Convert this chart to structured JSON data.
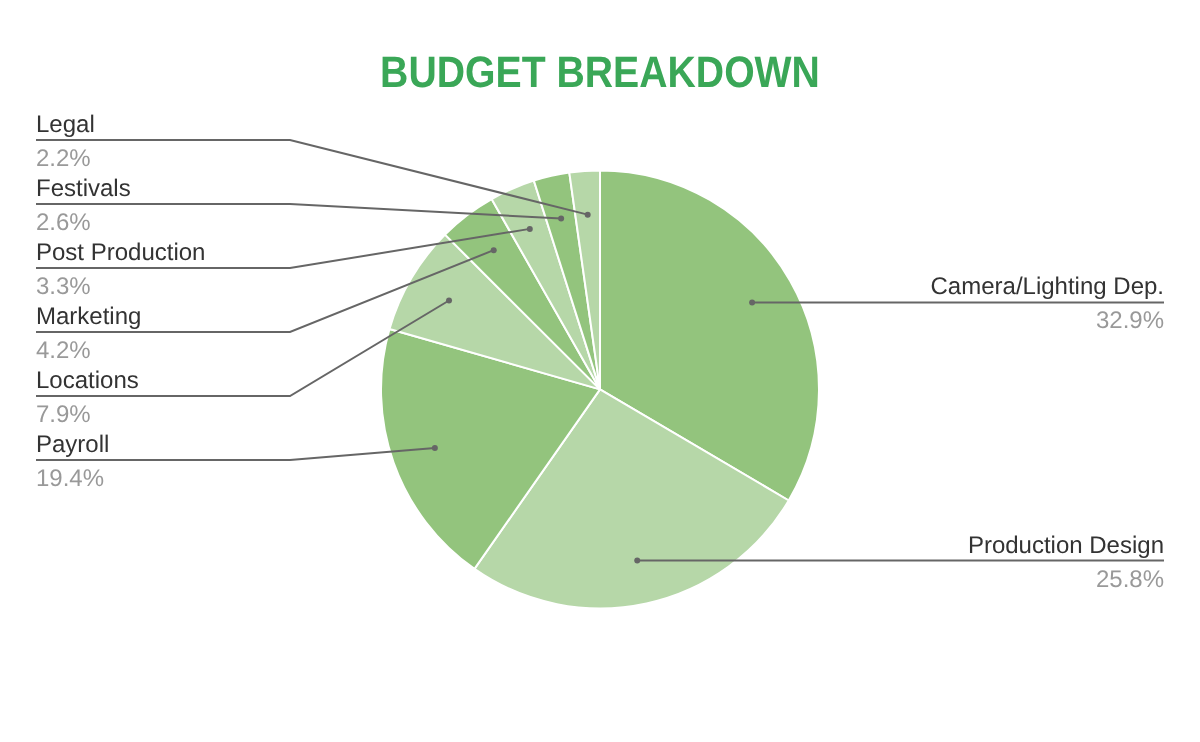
{
  "chart_data": {
    "type": "pie",
    "title": "BUDGET BREAKDOWN",
    "categories": [
      "Camera/Lighting Dep.",
      "Production Design",
      "Payroll",
      "Locations",
      "Marketing",
      "Post Production",
      "Festivals",
      "Legal"
    ],
    "values": [
      32.9,
      25.8,
      19.4,
      7.9,
      4.2,
      3.3,
      2.6,
      2.2
    ],
    "value_labels": [
      "32.9%",
      "25.8%",
      "19.4%",
      "7.9%",
      "4.2%",
      "3.3%",
      "2.6%",
      "2.2%"
    ],
    "colors": [
      "#93c47d",
      "#b6d7a8",
      "#93c47d",
      "#b6d7a8",
      "#93c47d",
      "#b6d7a8",
      "#93c47d",
      "#b6d7a8"
    ],
    "legend": false
  }
}
